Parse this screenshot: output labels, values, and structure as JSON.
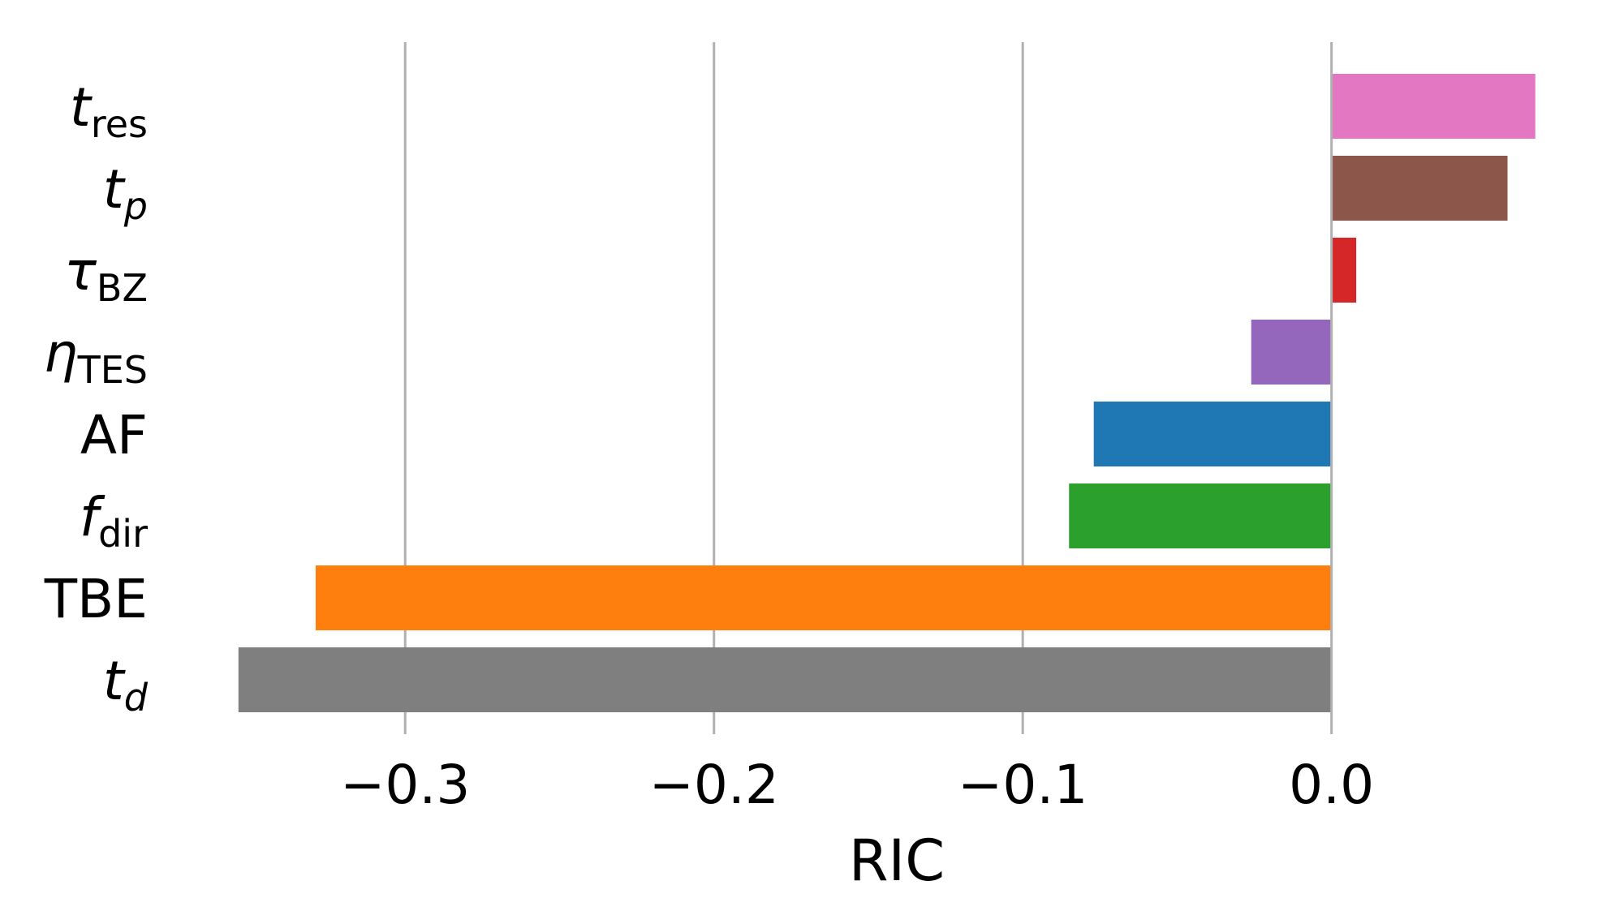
{
  "chart_data": {
    "type": "bar",
    "orientation": "horizontal",
    "xlabel": "RIC",
    "xlim": [
      -0.355,
      0.075
    ],
    "xticks": [
      -0.3,
      -0.2,
      -0.1,
      0.0
    ],
    "xtick_labels": [
      "−0.3",
      "−0.2",
      "−0.1",
      "0.0"
    ],
    "grid": "vertical",
    "categories": [
      {
        "key": "t_res",
        "base": "t",
        "sub": "res",
        "base_italic": true,
        "sub_italic": false,
        "value": 0.066,
        "color": "#e377c2"
      },
      {
        "key": "t_p",
        "base": "t",
        "sub": "p",
        "base_italic": true,
        "sub_italic": true,
        "value": 0.057,
        "color": "#8c564b"
      },
      {
        "key": "tau_BZ",
        "base": "τ",
        "sub": "BZ",
        "base_italic": true,
        "sub_italic": false,
        "value": 0.008,
        "color": "#d62728"
      },
      {
        "key": "eta_TES",
        "base": "η",
        "sub": "TES",
        "base_italic": true,
        "sub_italic": false,
        "value": -0.026,
        "color": "#9467bd"
      },
      {
        "key": "AF",
        "base": "AF",
        "sub": "",
        "base_italic": false,
        "sub_italic": false,
        "value": -0.077,
        "color": "#1f77b4"
      },
      {
        "key": "f_dir",
        "base": "f",
        "sub": "dir",
        "base_italic": true,
        "sub_italic": false,
        "value": -0.085,
        "color": "#2ca02c"
      },
      {
        "key": "TBE",
        "base": "TBE",
        "sub": "",
        "base_italic": false,
        "sub_italic": false,
        "value": -0.329,
        "color": "#ff7f0e"
      },
      {
        "key": "t_d",
        "base": "t",
        "sub": "d",
        "base_italic": true,
        "sub_italic": true,
        "value": -0.354,
        "color": "#7f7f7f"
      }
    ]
  }
}
